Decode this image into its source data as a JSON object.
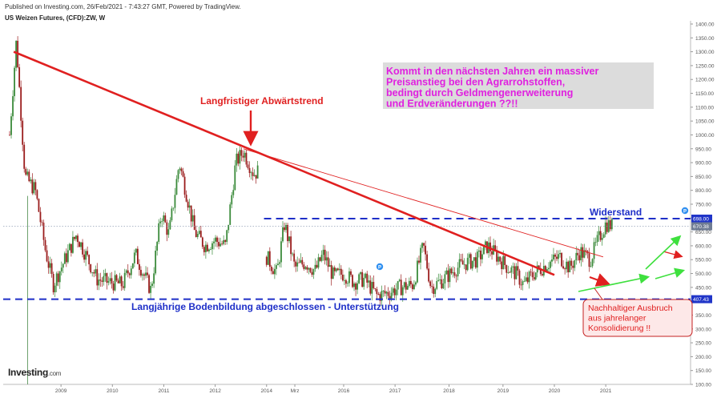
{
  "header": {
    "published": "Published on Investing.com, 26/Feb/2021 - 7:43:27 GMT, Powered by TradingView.",
    "symbol": "US Weizen Futures, (CFD):ZW, W"
  },
  "logo": {
    "name": "Investing",
    "suffix": ".com"
  },
  "chart_data": {
    "type": "candlestick",
    "ylim": [
      100,
      1400
    ],
    "y_ticks": [
      "100.00",
      "150.00",
      "200.00",
      "250.00",
      "300.00",
      "350.00",
      "400.00",
      "450.00",
      "500.00",
      "550.00",
      "600.00",
      "650.00",
      "700.00",
      "750.00",
      "800.00",
      "850.00",
      "900.00",
      "950.00",
      "1000.00",
      "1050.00",
      "1100.00",
      "1150.00",
      "1200.00",
      "1250.00",
      "1300.00",
      "1350.00",
      "1400.00"
    ],
    "x_range": [
      2008.0,
      2021.25
    ],
    "x_ticks": [
      {
        "label": "2009",
        "x": 2009.0
      },
      {
        "label": "2010",
        "x": 2010.0
      },
      {
        "label": "2011",
        "x": 2011.0
      },
      {
        "label": "2012",
        "x": 2012.0
      },
      {
        "label": "2014",
        "x": 2013.0
      },
      {
        "label": "Mrz",
        "x": 2013.55
      },
      {
        "label": "2016",
        "x": 2014.5
      },
      {
        "label": "2017",
        "x": 2015.5
      },
      {
        "label": "2018",
        "x": 2016.55
      },
      {
        "label": "2019",
        "x": 2017.6
      },
      {
        "label": "2020",
        "x": 2018.6
      },
      {
        "label": "2021",
        "x": 2019.6
      }
    ],
    "price_path": [
      [
        2008.0,
        1000
      ],
      [
        2008.13,
        1340
      ],
      [
        2008.3,
        850
      ],
      [
        2008.5,
        800
      ],
      [
        2008.7,
        580
      ],
      [
        2008.85,
        460
      ],
      [
        2009.0,
        520
      ],
      [
        2009.3,
        640
      ],
      [
        2009.5,
        560
      ],
      [
        2009.7,
        480
      ],
      [
        2009.9,
        470
      ],
      [
        2010.2,
        460
      ],
      [
        2010.45,
        570
      ],
      [
        2010.6,
        500
      ],
      [
        2010.75,
        440
      ],
      [
        2010.95,
        720
      ],
      [
        2011.1,
        640
      ],
      [
        2011.3,
        900
      ],
      [
        2011.45,
        780
      ],
      [
        2011.6,
        650
      ],
      [
        2011.8,
        600
      ],
      [
        2012.0,
        620
      ],
      [
        2012.2,
        600
      ],
      [
        2012.4,
        900
      ],
      [
        2012.55,
        940
      ],
      [
        2012.75,
        860
      ],
      [
        2012.85,
        870
      ]
    ],
    "price_path_2": [
      [
        2013.0,
        560
      ],
      [
        2013.2,
        500
      ],
      [
        2013.35,
        680
      ],
      [
        2013.55,
        520
      ],
      [
        2013.75,
        540
      ],
      [
        2013.95,
        510
      ],
      [
        2014.1,
        570
      ],
      [
        2014.3,
        490
      ],
      [
        2014.5,
        500
      ],
      [
        2014.7,
        470
      ],
      [
        2014.9,
        480
      ],
      [
        2015.15,
        420
      ],
      [
        2015.35,
        430
      ],
      [
        2015.6,
        450
      ],
      [
        2015.85,
        460
      ],
      [
        2016.05,
        600
      ],
      [
        2016.2,
        450
      ],
      [
        2016.45,
        480
      ],
      [
        2016.7,
        520
      ],
      [
        2016.9,
        540
      ],
      [
        2017.1,
        550
      ],
      [
        2017.3,
        600
      ],
      [
        2017.5,
        560
      ],
      [
        2017.7,
        520
      ],
      [
        2017.85,
        500
      ],
      [
        2018.0,
        460
      ],
      [
        2018.2,
        500
      ],
      [
        2018.5,
        540
      ],
      [
        2018.7,
        560
      ],
      [
        2018.9,
        520
      ],
      [
        2019.1,
        580
      ],
      [
        2019.3,
        550
      ],
      [
        2019.45,
        620
      ],
      [
        2019.6,
        680
      ],
      [
        2019.75,
        670
      ]
    ],
    "trendline_main": {
      "from": [
        2008.08,
        1300
      ],
      "to": [
        2018.6,
        495
      ],
      "color": "#e02020"
    },
    "trendline_thin": {
      "from": [
        2012.55,
        950
      ],
      "to": [
        2019.55,
        560
      ],
      "color": "#e02020"
    },
    "levels": [
      {
        "name": "Widerstand",
        "value": 698.0,
        "label": "698.00",
        "style": "dashed",
        "color": "#1e2fc8"
      },
      {
        "name": "Unterstützung",
        "value": 407.43,
        "label": "407.43",
        "style": "dashed",
        "color": "#1e2fc8"
      },
      {
        "name": "last",
        "value": 670.38,
        "label": "670.38",
        "style": "dotted",
        "color": "#8090a8"
      }
    ],
    "annotations": [
      {
        "text": "Langfristiger Abwärtstrend",
        "color": "#e02020"
      },
      {
        "text": "Widerstand",
        "color": "#1e2fc8"
      },
      {
        "text": "Langjährige Bodenbildung abgeschlossen - Unterstützung",
        "color": "#1e2fc8"
      },
      {
        "text": "Kommt in den nächsten Jahren ein massiver",
        "color": "#e020e0"
      },
      {
        "text": "Preisanstieg bei den Agrarrohstoffen,",
        "color": "#e020e0"
      },
      {
        "text": "bedingt durch Geldmengenerweiterung",
        "color": "#e020e0"
      },
      {
        "text": "und Erdveränderungen ??!!",
        "color": "#e020e0"
      },
      {
        "text": "Nachhaltiger Ausbruch",
        "color": "#e02020"
      },
      {
        "text": "aus jahrelanger",
        "color": "#e02020"
      },
      {
        "text": "Konsolidierung !!",
        "color": "#e02020"
      }
    ],
    "event_markers": [
      "P",
      "P"
    ],
    "colors": {
      "up": "#3a8a3a",
      "down": "#9a1c1c",
      "axis": "#888888",
      "grid": "#ffffff"
    }
  }
}
